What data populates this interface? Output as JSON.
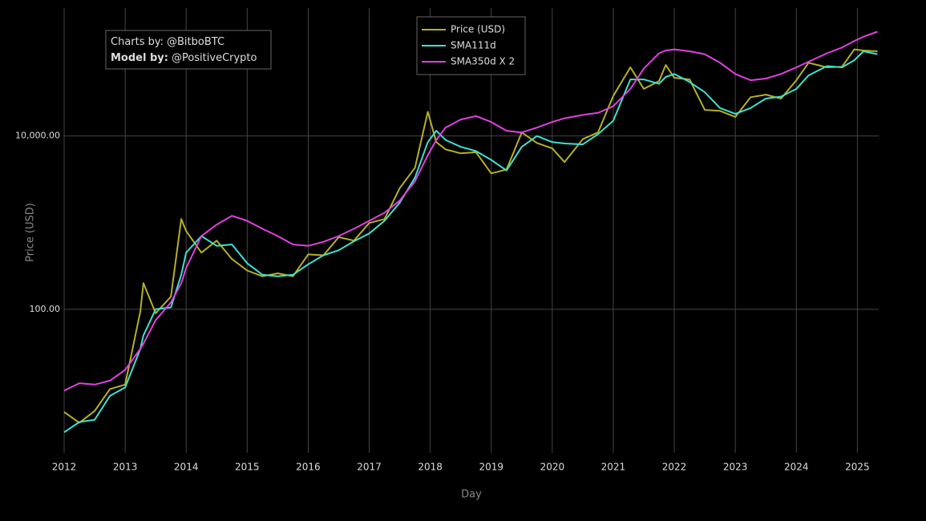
{
  "chart_data": {
    "type": "line",
    "x_label": "Day",
    "y_label": "Price (USD)",
    "annotation": [
      {
        "label": "Charts by:",
        "text": "@BitboBTC",
        "bold": false
      },
      {
        "label": "Model by:",
        "text": "@PositiveCrypto",
        "bold": true
      }
    ],
    "log_y": true,
    "grid": true,
    "xlim": [
      2012,
      2025.35
    ],
    "xticks": [
      2012,
      2013,
      2014,
      2015,
      2016,
      2017,
      2018,
      2019,
      2020,
      2021,
      2022,
      2023,
      2024,
      2025
    ],
    "ylim": [
      2.2,
      300000
    ],
    "yticks": [
      {
        "value": 100,
        "label": "100.00"
      },
      {
        "value": 10000,
        "label": "10,000.00"
      }
    ],
    "x": [
      2012.0,
      2012.25,
      2012.5,
      2012.75,
      2013.0,
      2013.25,
      2013.3,
      2013.5,
      2013.75,
      2013.92,
      2014.0,
      2014.25,
      2014.5,
      2014.75,
      2015.0,
      2015.25,
      2015.5,
      2015.75,
      2016.0,
      2016.25,
      2016.5,
      2016.75,
      2017.0,
      2017.25,
      2017.5,
      2017.75,
      2017.96,
      2018.1,
      2018.25,
      2018.5,
      2018.75,
      2019.0,
      2019.25,
      2019.5,
      2019.75,
      2020.0,
      2020.2,
      2020.5,
      2020.75,
      2021.0,
      2021.28,
      2021.5,
      2021.75,
      2021.86,
      2022.0,
      2022.25,
      2022.5,
      2022.75,
      2023.0,
      2023.25,
      2023.5,
      2023.75,
      2024.0,
      2024.2,
      2024.5,
      2024.75,
      2024.95,
      2025.1,
      2025.33
    ],
    "series": [
      {
        "name": "Price (USD)",
        "color": "#b5b024",
        "values": [
          6.5,
          4.9,
          6.7,
          12,
          13.5,
          95,
          200,
          90,
          140,
          1100,
          800,
          450,
          620,
          380,
          280,
          240,
          260,
          240,
          430,
          420,
          680,
          620,
          990,
          1100,
          2500,
          4300,
          19000,
          8500,
          7000,
          6300,
          6500,
          3700,
          4100,
          11000,
          8300,
          7200,
          5000,
          9200,
          11000,
          29000,
          62000,
          35000,
          43000,
          66000,
          47000,
          45000,
          20000,
          19500,
          16600,
          28000,
          30000,
          27000,
          44000,
          70000,
          62000,
          63000,
          100000,
          97000,
          95000
        ]
      },
      {
        "name": "SMA111d",
        "color": "#40e0d0",
        "values": [
          3.8,
          5.0,
          5.3,
          10,
          12.5,
          35,
          50,
          100,
          105,
          250,
          450,
          700,
          540,
          560,
          340,
          250,
          240,
          250,
          330,
          420,
          480,
          610,
          750,
          1050,
          1700,
          3300,
          8500,
          11500,
          9000,
          7500,
          6700,
          5300,
          4000,
          7500,
          10000,
          8500,
          8200,
          8000,
          10500,
          15000,
          45000,
          45000,
          40000,
          48000,
          52000,
          42000,
          32000,
          21000,
          18000,
          21000,
          27000,
          28500,
          35000,
          50000,
          64000,
          62000,
          75000,
          95000,
          88000
        ]
      },
      {
        "name": "SMA350d X 2",
        "color": "#e040e0",
        "values": [
          11.5,
          14,
          13.5,
          15,
          20,
          35,
          40,
          75,
          120,
          200,
          300,
          700,
          950,
          1200,
          1050,
          850,
          700,
          560,
          540,
          600,
          700,
          850,
          1050,
          1300,
          1800,
          3000,
          6000,
          9000,
          12500,
          15500,
          17000,
          14500,
          11500,
          11000,
          12500,
          14500,
          16000,
          17500,
          18500,
          22000,
          35000,
          60000,
          90000,
          97000,
          100000,
          95000,
          88000,
          70000,
          52000,
          44000,
          46000,
          52000,
          62000,
          72000,
          90000,
          105000,
          125000,
          140000,
          160000
        ]
      }
    ]
  }
}
